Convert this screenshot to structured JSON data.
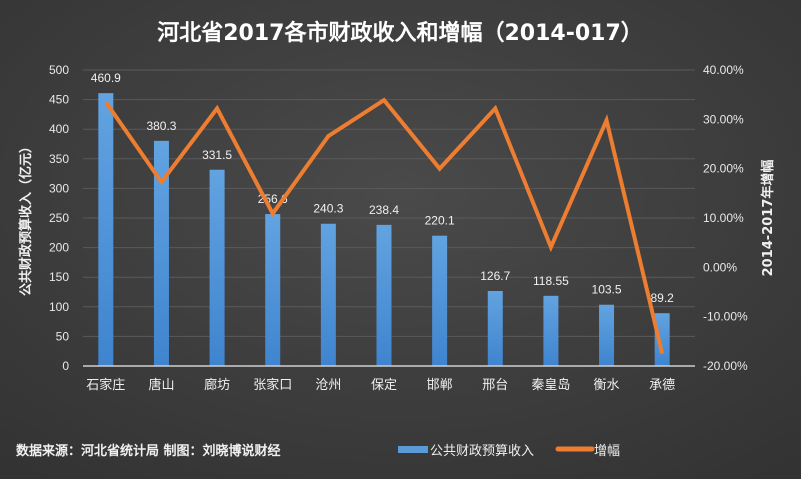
{
  "chart_data": {
    "type": "bar",
    "title": "河北省2017各市财政收入和增幅（2014-017）",
    "ylabel": "公共财政预算收入（亿元）",
    "y2label": "2014-2017年增幅",
    "ylim": [
      0,
      500
    ],
    "yticks": [
      0,
      50,
      100,
      150,
      200,
      250,
      300,
      350,
      400,
      450,
      500
    ],
    "y2lim": [
      -0.2,
      0.4
    ],
    "y2ticks": [
      "-20.00%",
      "-10.00%",
      "0.00%",
      "10.00%",
      "20.00%",
      "30.00%",
      "40.00%"
    ],
    "grid": true,
    "categories": [
      "石家庄",
      "唐山",
      "廊坊",
      "张家口",
      "沧州",
      "保定",
      "邯郸",
      "邢台",
      "秦皇岛",
      "衡水",
      "承德"
    ],
    "series": [
      {
        "name": "公共财政预算收入",
        "type": "bar",
        "color": "#5b9bd5",
        "axis": "left",
        "values": [
          460.9,
          380.3,
          331.5,
          256.6,
          240.3,
          238.4,
          220.1,
          126.7,
          118.55,
          103.5,
          89.2
        ],
        "labels": [
          "460.9",
          "380.3",
          "331.5",
          "256.6",
          "240.3",
          "238.4",
          "220.1",
          "126.7",
          "118.55",
          "103.5",
          "89.2"
        ]
      },
      {
        "name": "增幅",
        "type": "line",
        "color": "#ed7d31",
        "axis": "right",
        "values": [
          0.335,
          0.173,
          0.322,
          0.109,
          0.266,
          0.339,
          0.2,
          0.322,
          0.041,
          0.298,
          -0.175
        ]
      }
    ],
    "legend": "bottom-right",
    "source": "数据来源：河北省统计局 制图：刘晓博说财经"
  }
}
